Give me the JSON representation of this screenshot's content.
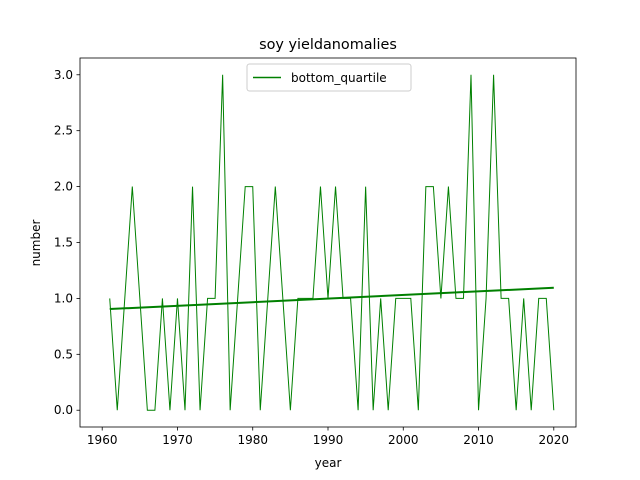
{
  "chart_data": {
    "type": "line",
    "title": "soy yieldanomalies",
    "xlabel": "year",
    "ylabel": "number",
    "xlim": [
      1957.05,
      2022.95
    ],
    "ylim": [
      -0.15,
      3.15
    ],
    "xticks": [
      1960,
      1970,
      1980,
      1990,
      2000,
      2010,
      2020
    ],
    "yticks": [
      0.0,
      0.5,
      1.0,
      1.5,
      2.0,
      2.5,
      3.0
    ],
    "ytick_labels": [
      "0.0",
      "0.5",
      "1.0",
      "1.5",
      "2.0",
      "2.5",
      "3.0"
    ],
    "grid": false,
    "legend_position": "top-center",
    "series": [
      {
        "name": "bottom_quartile",
        "color": "#008000",
        "x": [
          1961,
          1962,
          1963,
          1964,
          1965,
          1966,
          1967,
          1968,
          1969,
          1970,
          1971,
          1972,
          1973,
          1974,
          1975,
          1976,
          1977,
          1978,
          1979,
          1980,
          1981,
          1982,
          1983,
          1984,
          1985,
          1986,
          1987,
          1988,
          1989,
          1990,
          1991,
          1992,
          1993,
          1994,
          1995,
          1996,
          1997,
          1998,
          1999,
          2000,
          2001,
          2002,
          2003,
          2004,
          2005,
          2006,
          2007,
          2008,
          2009,
          2010,
          2011,
          2012,
          2013,
          2014,
          2015,
          2016,
          2017,
          2018,
          2019,
          2020
        ],
        "y": [
          1,
          0,
          1,
          2,
          1,
          0,
          0,
          1,
          0,
          1,
          0,
          2,
          0,
          1,
          1,
          3,
          0,
          1,
          2,
          2,
          0,
          1,
          2,
          1,
          0,
          1,
          1,
          1,
          2,
          1,
          2,
          1,
          1,
          0,
          2,
          0,
          1,
          0,
          1,
          1,
          1,
          0,
          2,
          2,
          1,
          2,
          1,
          1,
          3,
          0,
          1,
          3,
          1,
          1,
          0,
          1,
          0,
          1,
          1,
          0
        ]
      }
    ],
    "trend": {
      "color": "#008000",
      "x": [
        1961,
        2020
      ],
      "y": [
        0.905,
        1.095
      ]
    }
  }
}
